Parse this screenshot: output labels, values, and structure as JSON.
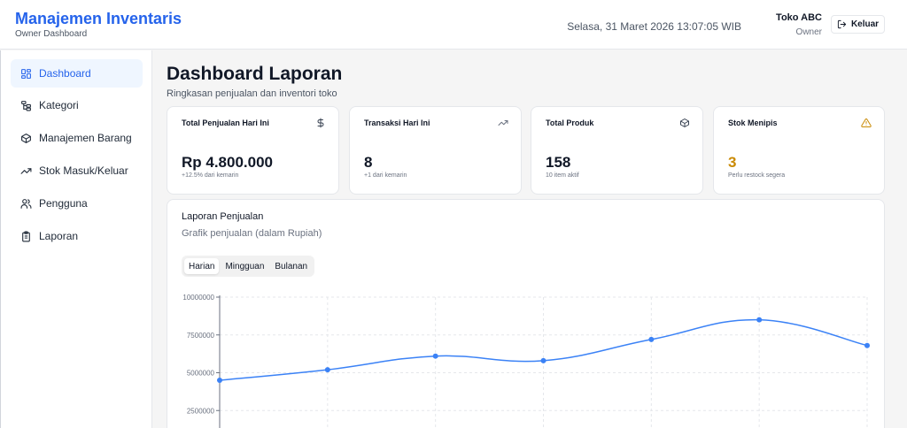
{
  "header": {
    "app_title": "Manajemen Inventaris",
    "app_subtitle": "Owner Dashboard",
    "datetime": "Selasa, 31 Maret 2026 13:07:05 WIB",
    "user_name": "Toko ABC",
    "user_role": "Owner",
    "logout_label": "Keluar"
  },
  "sidebar": {
    "items": [
      {
        "label": "Dashboard",
        "icon": "dashboard-grid-icon",
        "active": true
      },
      {
        "label": "Kategori",
        "icon": "category-tree-icon",
        "active": false
      },
      {
        "label": "Manajemen Barang",
        "icon": "box-icon",
        "active": false
      },
      {
        "label": "Stok Masuk/Keluar",
        "icon": "trending-up-icon",
        "active": false
      },
      {
        "label": "Pengguna",
        "icon": "users-icon",
        "active": false
      },
      {
        "label": "Laporan",
        "icon": "clipboard-icon",
        "active": false
      }
    ]
  },
  "main": {
    "title": "Dashboard Laporan",
    "subtitle": "Ringkasan penjualan dan inventori toko"
  },
  "cards": [
    {
      "label": "Total Penjualan Hari Ini",
      "value": "Rp 4.800.000",
      "note": "+12.5% dari kemarin",
      "icon": "dollar-icon"
    },
    {
      "label": "Transaksi Hari Ini",
      "value": "8",
      "note": "+1 dari kemarin",
      "icon": "trending-up-icon"
    },
    {
      "label": "Total Produk",
      "value": "158",
      "note": "10 item aktif",
      "icon": "box-icon"
    },
    {
      "label": "Stok Menipis",
      "value": "3",
      "note": "Perlu restock segera",
      "icon": "warning-icon",
      "value_color": "#ca8a04"
    }
  ],
  "report": {
    "title": "Laporan Penjualan",
    "description": "Grafik penjualan (dalam Rupiah)",
    "tabs": [
      "Harian",
      "Mingguan",
      "Bulanan"
    ],
    "active_tab": "Harian"
  },
  "colors": {
    "brand": "#2563eb",
    "line": "#3b82f6",
    "warning": "#ca8a04"
  },
  "chart_data": {
    "type": "line",
    "title": "Laporan Penjualan",
    "ylim": [
      0,
      10000000
    ],
    "yticks": [
      10000000,
      7500000,
      5000000,
      2500000
    ],
    "ytick_labels": [
      "10000000",
      "7500000",
      "5000000",
      "2500000"
    ],
    "grid": true,
    "series": [
      {
        "values": [
          4500000,
          5200000,
          6100000,
          5800000,
          7200000,
          8500000,
          6800000
        ]
      }
    ]
  }
}
